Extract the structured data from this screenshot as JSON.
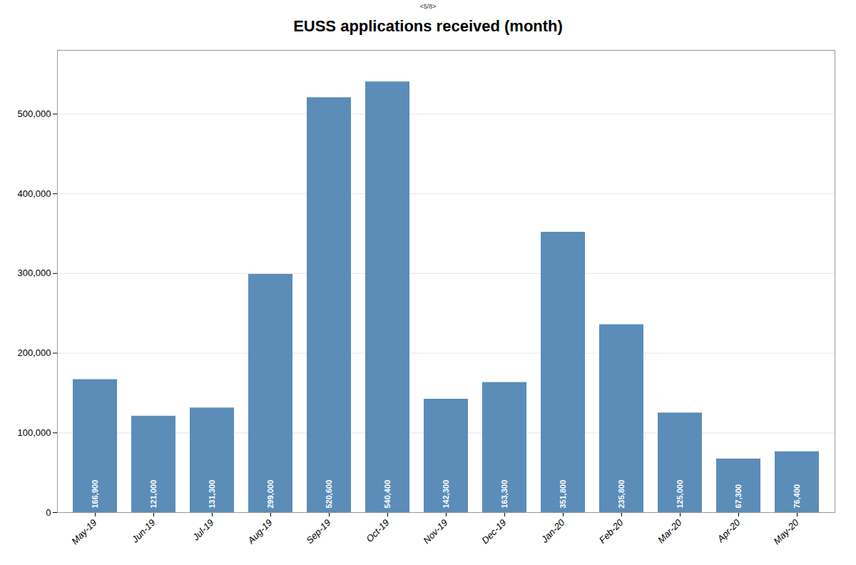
{
  "chart_data": {
    "type": "bar",
    "title": "EUSS applications received (month)",
    "subtitle": "<5/8>",
    "categories": [
      "May-19",
      "Jun-19",
      "Jul-19",
      "Aug-19",
      "Sep-19",
      "Oct-19",
      "Nov-19",
      "Dec-19",
      "Jan-20",
      "Feb-20",
      "Mar-20",
      "Apr-20",
      "May-20"
    ],
    "values": [
      166900,
      121000,
      131300,
      299000,
      520600,
      540400,
      142300,
      163300,
      351800,
      235800,
      125000,
      67300,
      76400
    ],
    "value_labels": [
      "166,900",
      "121,000",
      "131,300",
      "299,000",
      "520,600",
      "540,400",
      "142,300",
      "163,300",
      "351,800",
      "235,800",
      "125,000",
      "67,300",
      "76,400"
    ],
    "data_labels": true,
    "color": "#5b8db8",
    "ylim": [
      0,
      580000
    ],
    "yticks": [
      0,
      {
        "value": 100000,
        "label": "100,000"
      },
      {
        "value": 200000,
        "label": "200,000"
      },
      {
        "value": 300000,
        "label": "300,000"
      },
      {
        "value": 400000,
        "label": "400,000"
      },
      {
        "value": 500000,
        "label": "500,000"
      }
    ],
    "grid": true
  }
}
